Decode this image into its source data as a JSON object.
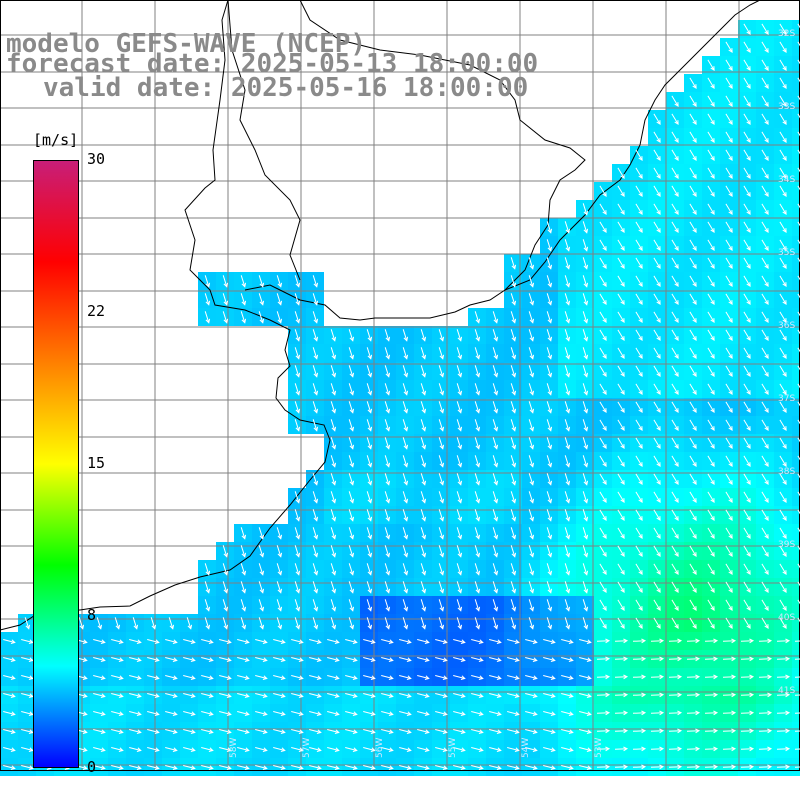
{
  "title": {
    "model": "modelo GEFS-WAVE (NCEP)",
    "forecast": "forecast date: 2025-05-13 18:00:00",
    "valid": "valid date: 2025-05-16 18:00:00"
  },
  "colorbar": {
    "units": "[m/s]",
    "ticks": [
      "30",
      "22",
      "15",
      "8",
      "0"
    ],
    "colors": [
      "#0000ff",
      "#00ffff",
      "#00ff00",
      "#ffff00",
      "#ff8000",
      "#ff0000",
      "#c81e78"
    ]
  },
  "map": {
    "lat_labels": [
      "30S",
      "31S",
      "32S",
      "33S",
      "34S",
      "35S",
      "36S",
      "37S",
      "38S",
      "39S",
      "40S",
      "41S"
    ],
    "lon_labels": [
      "58W",
      "57W",
      "56W",
      "55W",
      "54W",
      "53W"
    ],
    "land_color": "#ffffff",
    "grid_color": "#808080",
    "arrow_color": "#ffffff"
  }
}
